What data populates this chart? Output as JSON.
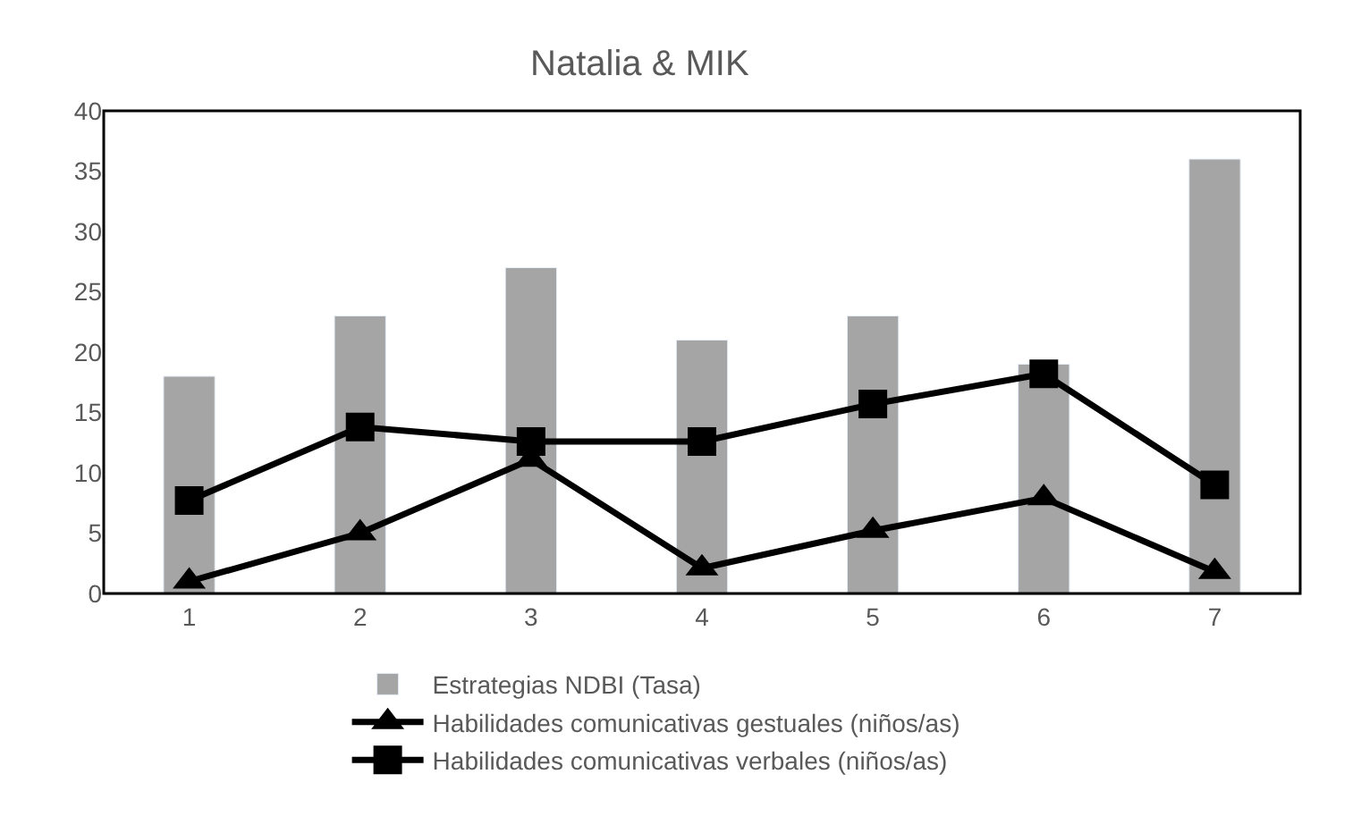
{
  "chart_data": {
    "type": "bar",
    "title": "Natalia & MIK",
    "categories": [
      "1",
      "2",
      "3",
      "4",
      "5",
      "6",
      "7"
    ],
    "series": [
      {
        "name": "Estrategias NDBI (Tasa)",
        "color": "#a5a5a5",
        "values": [
          18,
          23,
          27,
          21,
          23,
          19,
          36
        ]
      },
      {
        "name": "Habilidades comunicativas gestuales (niños/as)",
        "type": "line",
        "marker": "triangle",
        "color": "#000000",
        "values": [
          1,
          5,
          11.1,
          2.1,
          5.2,
          7.9,
          1.8
        ]
      },
      {
        "name": "Habilidades comunicativas verbales (niños/as)",
        "type": "line",
        "marker": "square",
        "color": "#000000",
        "values": [
          7.7,
          13.8,
          12.6,
          12.6,
          15.7,
          18.2,
          9.0
        ]
      }
    ],
    "ylim": [
      0,
      40
    ],
    "yticks": [
      0,
      5,
      10,
      15,
      20,
      25,
      30,
      35,
      40
    ],
    "legend": "bottom"
  }
}
